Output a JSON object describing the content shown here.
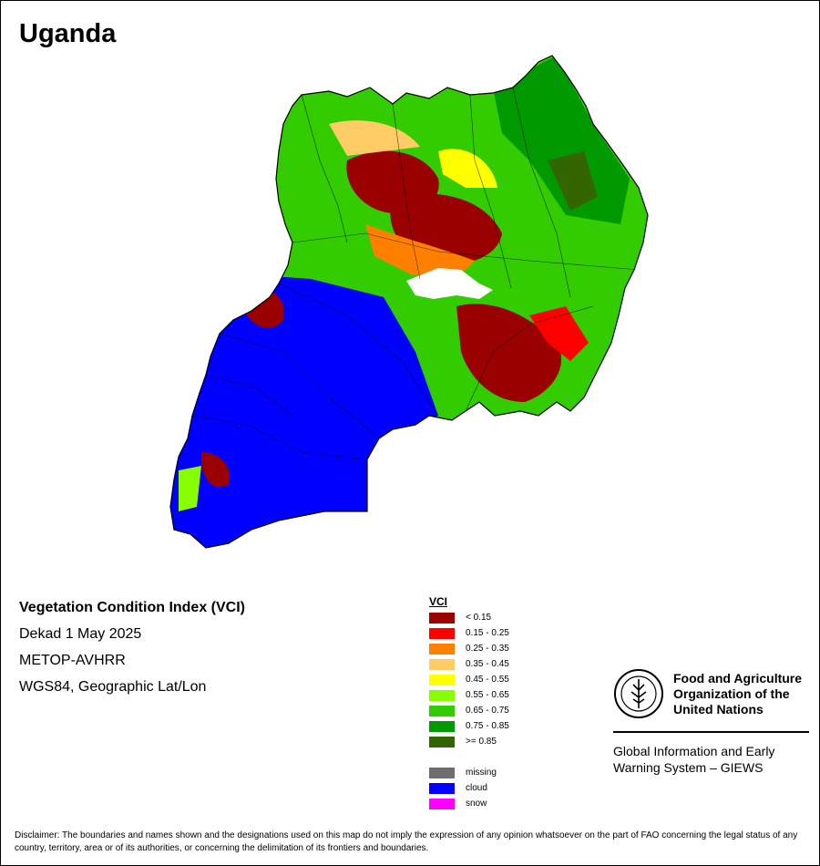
{
  "map_title": "Uganda",
  "info": {
    "index_name": "Vegetation Condition Index (VCI)",
    "period": "Dekad 1 May 2025",
    "sensor": "METOP-AVHRR",
    "projection": "WGS84, Geographic Lat/Lon"
  },
  "legend": {
    "title": "VCI",
    "classes": [
      {
        "label": "< 0.15",
        "color": "#9a0000"
      },
      {
        "label": "0.15 - 0.25",
        "color": "#ff0000"
      },
      {
        "label": "0.25 - 0.35",
        "color": "#ff8000"
      },
      {
        "label": "0.35 - 0.45",
        "color": "#ffcc66"
      },
      {
        "label": "0.45 - 0.55",
        "color": "#ffff00"
      },
      {
        "label": "0.55 - 0.65",
        "color": "#88ff00"
      },
      {
        "label": "0.65 - 0.75",
        "color": "#33cc00"
      },
      {
        "label": "0.75 - 0.85",
        "color": "#009900"
      },
      {
        "label": ">= 0.85",
        "color": "#336600"
      }
    ],
    "special": [
      {
        "label": "missing",
        "color": "#6e6e6e"
      },
      {
        "label": "cloud",
        "color": "#0000ff"
      },
      {
        "label": "snow",
        "color": "#ff00ff"
      }
    ]
  },
  "organization": {
    "line1": "Food and Agriculture",
    "line2": "Organization of the",
    "line3": "United Nations",
    "emblem_text": "FAO FIAT PANIS",
    "giews_line1": "Global Information and Early",
    "giews_line2": "Warning System – GIEWS"
  },
  "disclaimer": "Disclaimer: The boundaries and names shown and the designations used on this map do not imply the expression of any opinion whatsoever on the part of FAO concerning the legal status of any country, territory, area or of its authorities, or concerning the delimitation of its frontiers and boundaries."
}
